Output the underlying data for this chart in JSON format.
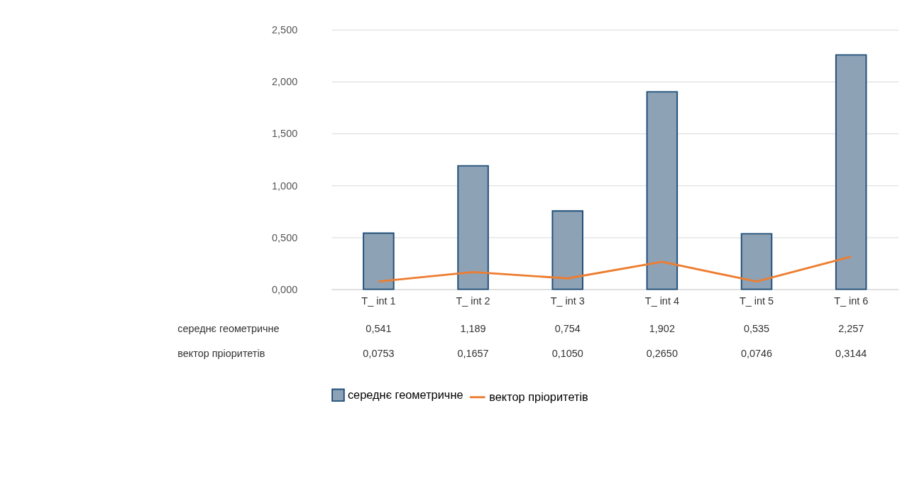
{
  "chart_data": {
    "type": "bar",
    "categories": [
      "T_ int 1",
      "T_ int 2",
      "T_ int 3",
      "T_ int 4",
      "T_ int 5",
      "T_ int 6"
    ],
    "series": [
      {
        "name": "середнє геометричне",
        "color": "#8da2b5",
        "values": [
          0.541,
          1.189,
          0.754,
          1.902,
          0.535,
          2.257
        ],
        "value_labels": [
          "0,541",
          "1,189",
          "0,754",
          "1,902",
          "0,535",
          "2,257"
        ]
      },
      {
        "name": "вектор пріоритетів",
        "type": "line",
        "color": "#ed7d31",
        "values": [
          0.0753,
          0.1657,
          0.105,
          0.265,
          0.0746,
          0.3144
        ],
        "value_labels": [
          "0,0753",
          "0,1657",
          "0,1050",
          "0,2650",
          "0,0746",
          "0,3144"
        ]
      }
    ],
    "ylim": [
      0,
      2.5
    ],
    "yticks": [
      {
        "value": 0,
        "label": "0,000"
      },
      {
        "value": 0.5,
        "label": "0,500"
      },
      {
        "value": 1,
        "label": "1,000"
      },
      {
        "value": 1.5,
        "label": "1,500"
      },
      {
        "value": 2,
        "label": "2,000"
      },
      {
        "value": 2.5,
        "label": "2,500"
      }
    ],
    "grid": "y",
    "legend": "bottom",
    "marker": "none",
    "line_style": "solid"
  }
}
